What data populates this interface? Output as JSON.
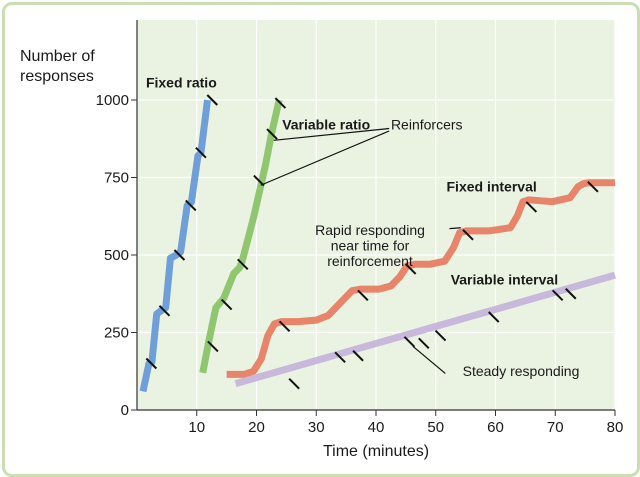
{
  "chart_data": {
    "type": "line",
    "xlabel": "Time (minutes)",
    "ylabel": "Number of\nresponses",
    "xlim": [
      0,
      80
    ],
    "ylim": [
      0,
      1000
    ],
    "xticks": [
      "10",
      "20",
      "30",
      "40",
      "50",
      "60",
      "70",
      "80"
    ],
    "yticks": [
      "0",
      "250",
      "500",
      "750",
      "1000"
    ],
    "grid": true,
    "background": "#eaf2e1",
    "series": [
      {
        "name": "Fixed ratio",
        "color": "#6f9fd8",
        "x": [
          1.0,
          2.0,
          2.5,
          3.3,
          4.0,
          4.8,
          5.6,
          6.6,
          7.3,
          8.4,
          9.1,
          10.2,
          10.7,
          11.8
        ],
        "y": [
          60,
          150,
          155,
          310,
          320,
          330,
          490,
          500,
          510,
          660,
          670,
          820,
          830,
          1000
        ],
        "reinforcers": [
          [
            2.4,
            150
          ],
          [
            4.6,
            320
          ],
          [
            7.1,
            500
          ],
          [
            9.0,
            660
          ],
          [
            10.7,
            830
          ],
          [
            12.6,
            1000
          ]
        ]
      },
      {
        "name": "Variable ratio",
        "color": "#8fc66e",
        "x": [
          11,
          12,
          13.2,
          14.5,
          16.2,
          17.2,
          17.6,
          19.5,
          21.5,
          22.5,
          23.8
        ],
        "y": [
          120,
          220,
          330,
          360,
          440,
          460,
          480,
          620,
          790,
          890,
          1000
        ],
        "reinforcers": [
          [
            12.7,
            205
          ],
          [
            15.0,
            340
          ],
          [
            17.7,
            470
          ],
          [
            20.4,
            740
          ],
          [
            22.6,
            890
          ],
          [
            24.0,
            990
          ]
        ]
      },
      {
        "name": "Fixed interval",
        "color": "#e8846a",
        "x": [
          15,
          18,
          19.5,
          20.8,
          21.9,
          23.0,
          24.2,
          27,
          30,
          32,
          34.5,
          36,
          37.5,
          40.5,
          42.5,
          44,
          45.2,
          46.5,
          49,
          51.5,
          53,
          54,
          55.2,
          59,
          62.5,
          63.7,
          64.6,
          65.6,
          69.5,
          72.5,
          73.8,
          74.7,
          75.5,
          80
        ],
        "y": [
          115,
          115,
          125,
          165,
          240,
          278,
          285,
          285,
          290,
          305,
          355,
          385,
          390,
          390,
          400,
          430,
          465,
          470,
          470,
          480,
          525,
          572,
          578,
          578,
          588,
          628,
          672,
          678,
          672,
          685,
          720,
          730,
          733,
          733
        ],
        "reinforcers": [
          [
            24.7,
            270
          ],
          [
            37.8,
            370
          ],
          [
            45.8,
            455
          ],
          [
            55.4,
            565
          ],
          [
            66.0,
            655
          ],
          [
            76.3,
            720
          ]
        ]
      },
      {
        "name": "Variable interval",
        "color": "#c8b8dc",
        "x": [
          16.5,
          80
        ],
        "y": [
          85,
          435
        ],
        "reinforcers": [
          [
            26.3,
            85
          ],
          [
            34.0,
            170
          ],
          [
            37.0,
            175
          ],
          [
            45.6,
            220
          ],
          [
            48.0,
            215
          ],
          [
            50.8,
            240
          ],
          [
            59.7,
            300
          ],
          [
            70.4,
            370
          ],
          [
            72.6,
            375
          ]
        ]
      }
    ],
    "annotations": [
      {
        "text": "Fixed ratio",
        "x": 1.5,
        "y": 1040
      },
      {
        "text": "Variable ratio",
        "x": 24.3,
        "y": 905
      },
      {
        "text": "Reinforcers",
        "x": 42.5,
        "y": 905
      },
      {
        "text": "Fixed interval",
        "x": 51.8,
        "y": 705
      },
      {
        "text": "Rapid responding",
        "x": 39,
        "y": 565
      },
      {
        "text": "near time for",
        "x": 39,
        "y": 515
      },
      {
        "text": "reinforcement",
        "x": 39,
        "y": 465
      },
      {
        "text": "Variable interval",
        "x": 52.5,
        "y": 405
      },
      {
        "text": "Steady responding",
        "x": 54.5,
        "y": 110
      }
    ]
  }
}
